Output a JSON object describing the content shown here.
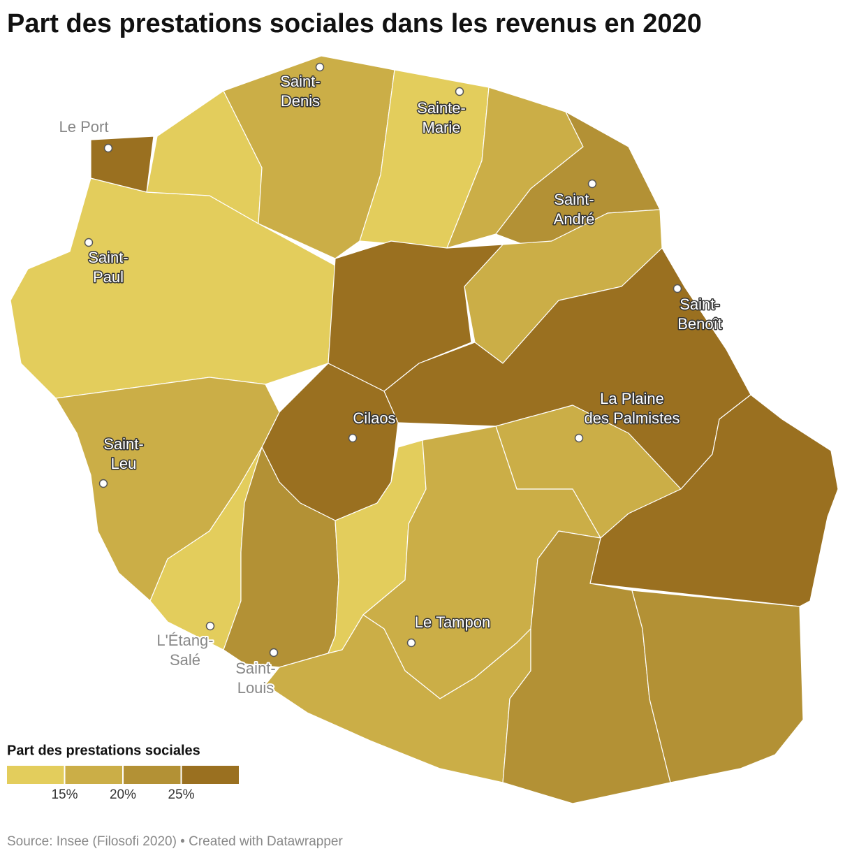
{
  "title": "Part des prestations sociales dans les revenus en 2020",
  "cities": [
    "Saint-Denis",
    "Sainte-Marie",
    "Le Port",
    "Saint-Paul",
    "Saint-André",
    "Saint-Benoît",
    "La Plaine des Palmistes",
    "Cilaos",
    "Saint-Leu",
    "Le Tampon",
    "L'Étang-Salé",
    "Saint-Louis"
  ],
  "legend": {
    "title": "Part des prestations sociales",
    "colors": [
      "#e3cd5c",
      "#cbae47",
      "#b39135",
      "#9a7020"
    ],
    "ticks": [
      {
        "value": 15,
        "label": "15%"
      },
      {
        "value": 20,
        "label": "20%"
      },
      {
        "value": 25,
        "label": "25%"
      }
    ]
  },
  "source": "Source: Insee (Filosofi 2020) • Created with Datawrapper"
}
